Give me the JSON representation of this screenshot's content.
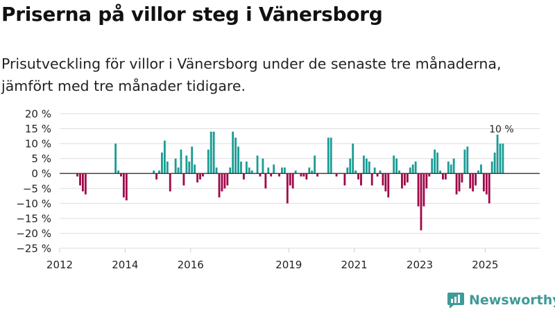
{
  "title": "Priserna på villor steg i Vänersborg",
  "subtitle": "Prisutveckling för villor i Vänersborg under de senaste tre månaderna, jämfört med tre månader tidigare.",
  "brand": {
    "name": "Newsworthy",
    "color": "#3f9a98"
  },
  "colors": {
    "positive": "#1a9c95",
    "negative": "#a0084a",
    "zero_line": "#333333",
    "grid": "#dddddd"
  },
  "chart_data": {
    "type": "bar",
    "title": "Priserna på villor steg i Vänersborg",
    "xlabel": "",
    "ylabel": "",
    "x_unit": "month",
    "x_start": "2012-01",
    "xlim": [
      "2012-01",
      "2026-09"
    ],
    "ylim": [
      -25,
      20
    ],
    "y_ticks": [
      20,
      15,
      10,
      5,
      0,
      -5,
      -10,
      -15,
      -20,
      -25
    ],
    "y_tick_labels": [
      "20 %",
      "15 %",
      "10 %",
      "5 %",
      "0 %",
      "−5 %",
      "−10 %",
      "−15 %",
      "−20 %",
      "−25 %"
    ],
    "x_tick_labels": [
      {
        "label": "2012",
        "date": "2012-01"
      },
      {
        "label": "2014",
        "date": "2014-01"
      },
      {
        "label": "2016",
        "date": "2016-01"
      },
      {
        "label": "2019",
        "date": "2019-01"
      },
      {
        "label": "2021",
        "date": "2021-01"
      },
      {
        "label": "2023",
        "date": "2023-01"
      },
      {
        "label": "2025",
        "date": "2025-01"
      }
    ],
    "annotation": {
      "text": "10 %",
      "date": "2025-08"
    },
    "series": [
      {
        "name": "Prisutveckling",
        "values": [
          null,
          null,
          null,
          null,
          null,
          null,
          -1,
          -4,
          -6,
          -7,
          null,
          null,
          null,
          null,
          null,
          null,
          null,
          null,
          null,
          null,
          10,
          1,
          -1,
          -8,
          -9,
          null,
          null,
          null,
          null,
          null,
          null,
          null,
          null,
          null,
          1,
          -2,
          1,
          7,
          11,
          4,
          -6,
          null,
          5,
          2,
          8,
          -4,
          6,
          4,
          9,
          3,
          -3,
          -2,
          -1,
          null,
          8,
          14,
          14,
          2,
          -8,
          -6,
          -5,
          -4,
          2,
          14,
          12,
          9,
          4,
          -2,
          4,
          2,
          1,
          null,
          6,
          -1,
          5,
          -5,
          2,
          -1,
          3,
          null,
          -1,
          2,
          2,
          -10,
          -4,
          -5,
          1,
          null,
          -1,
          -1,
          -2,
          2,
          1,
          6,
          -1,
          null,
          null,
          null,
          12,
          12,
          null,
          -1,
          null,
          null,
          -4,
          2,
          5,
          10,
          1,
          -2,
          -4,
          6,
          5,
          4,
          -4,
          2,
          -1,
          1,
          -4,
          -6,
          -8,
          null,
          6,
          5,
          1,
          -5,
          -4,
          -3,
          2,
          3,
          4,
          -11,
          -19,
          -11,
          -5,
          -1,
          5,
          8,
          7,
          1,
          -2,
          -2,
          4,
          3,
          5,
          -7,
          -6,
          -3,
          8,
          9,
          -5,
          -6,
          -4,
          1,
          3,
          -6,
          -7,
          -10,
          4,
          7,
          13,
          10,
          10
        ]
      }
    ]
  }
}
